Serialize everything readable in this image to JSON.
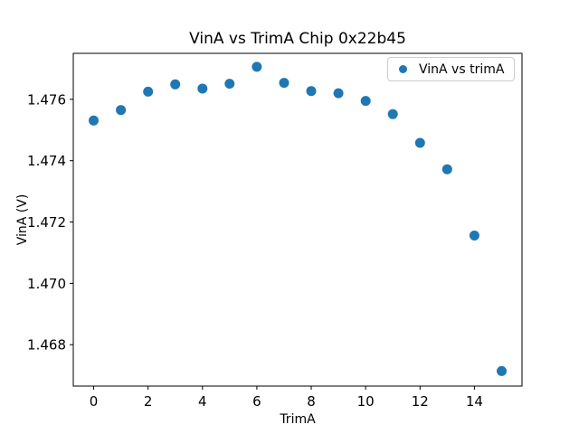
{
  "chart_data": {
    "type": "scatter",
    "title": "VinA vs TrimA Chip 0x22b45",
    "xlabel": "TrimA",
    "ylabel": "VinA (V)",
    "legend": [
      "VinA vs trimA"
    ],
    "legend_position": "upper right",
    "marker_color": "#1f77b4",
    "x": [
      0,
      1,
      2,
      3,
      4,
      5,
      6,
      7,
      8,
      9,
      10,
      11,
      12,
      13,
      14,
      15
    ],
    "y": [
      1.47531,
      1.47565,
      1.47625,
      1.47649,
      1.47635,
      1.47651,
      1.47706,
      1.47654,
      1.47627,
      1.4762,
      1.47595,
      1.47552,
      1.47458,
      1.47372,
      1.47156,
      1.46714
    ],
    "xlim": [
      -0.75,
      15.75
    ],
    "ylim": [
      1.46665,
      1.4775
    ],
    "xticks": [
      "0",
      "2",
      "4",
      "6",
      "8",
      "10",
      "12",
      "14"
    ],
    "yticks": [
      "1.468",
      "1.470",
      "1.472",
      "1.474",
      "1.476"
    ],
    "grid": false
  }
}
